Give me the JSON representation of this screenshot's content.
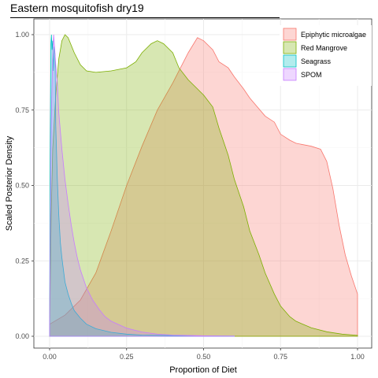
{
  "chart_data": {
    "type": "area",
    "title": "Eastern mosquitofish dry19",
    "xlabel": "Proportion of Diet",
    "ylabel": "Scaled Posterior Density",
    "xlim": [
      0,
      1
    ],
    "ylim": [
      0,
      1
    ],
    "x_ticks": [
      "0.00",
      "0.25",
      "0.50",
      "0.75",
      "1.00"
    ],
    "y_ticks": [
      "0.00",
      "0.25",
      "0.50",
      "0.75",
      "1.00"
    ],
    "grid": true,
    "legend_position": "top-right",
    "series": [
      {
        "name": "Epiphytic microalgae",
        "fill": "#F8766D",
        "stroke": "#F8766D",
        "points": [
          [
            0,
            0.04
          ],
          [
            0.05,
            0.07
          ],
          [
            0.1,
            0.12
          ],
          [
            0.15,
            0.21
          ],
          [
            0.2,
            0.35
          ],
          [
            0.25,
            0.5
          ],
          [
            0.3,
            0.63
          ],
          [
            0.35,
            0.75
          ],
          [
            0.4,
            0.84
          ],
          [
            0.45,
            0.94
          ],
          [
            0.48,
            0.99
          ],
          [
            0.5,
            0.98
          ],
          [
            0.53,
            0.95
          ],
          [
            0.55,
            0.91
          ],
          [
            0.58,
            0.89
          ],
          [
            0.6,
            0.86
          ],
          [
            0.63,
            0.82
          ],
          [
            0.65,
            0.79
          ],
          [
            0.7,
            0.73
          ],
          [
            0.73,
            0.71
          ],
          [
            0.75,
            0.67
          ],
          [
            0.78,
            0.65
          ],
          [
            0.8,
            0.64
          ],
          [
            0.85,
            0.63
          ],
          [
            0.88,
            0.62
          ],
          [
            0.9,
            0.58
          ],
          [
            0.92,
            0.49
          ],
          [
            0.94,
            0.37
          ],
          [
            0.96,
            0.27
          ],
          [
            0.98,
            0.2
          ],
          [
            1.0,
            0.14
          ]
        ]
      },
      {
        "name": "Red Mangrove",
        "fill": "#7CAE00",
        "stroke": "#7CAE00",
        "points": [
          [
            0,
            0.02
          ],
          [
            0.005,
            0.4
          ],
          [
            0.01,
            0.62
          ],
          [
            0.02,
            0.8
          ],
          [
            0.03,
            0.92
          ],
          [
            0.04,
            0.98
          ],
          [
            0.05,
            1.0
          ],
          [
            0.06,
            0.99
          ],
          [
            0.08,
            0.94
          ],
          [
            0.1,
            0.9
          ],
          [
            0.12,
            0.88
          ],
          [
            0.15,
            0.875
          ],
          [
            0.2,
            0.88
          ],
          [
            0.25,
            0.89
          ],
          [
            0.28,
            0.91
          ],
          [
            0.3,
            0.94
          ],
          [
            0.33,
            0.97
          ],
          [
            0.35,
            0.98
          ],
          [
            0.37,
            0.97
          ],
          [
            0.4,
            0.94
          ],
          [
            0.42,
            0.89
          ],
          [
            0.45,
            0.85
          ],
          [
            0.48,
            0.82
          ],
          [
            0.5,
            0.8
          ],
          [
            0.53,
            0.76
          ],
          [
            0.55,
            0.69
          ],
          [
            0.58,
            0.6
          ],
          [
            0.6,
            0.52
          ],
          [
            0.63,
            0.43
          ],
          [
            0.65,
            0.35
          ],
          [
            0.68,
            0.27
          ],
          [
            0.7,
            0.21
          ],
          [
            0.73,
            0.14
          ],
          [
            0.75,
            0.1
          ],
          [
            0.78,
            0.065
          ],
          [
            0.8,
            0.05
          ],
          [
            0.85,
            0.028
          ],
          [
            0.9,
            0.015
          ],
          [
            0.95,
            0.007
          ],
          [
            1.0,
            0.003
          ]
        ]
      },
      {
        "name": "Seagrass",
        "fill": "#00BFC4",
        "stroke": "#00BFC4",
        "points": [
          [
            0,
            0.02
          ],
          [
            0.002,
            0.6
          ],
          [
            0.004,
            0.97
          ],
          [
            0.006,
            1.0
          ],
          [
            0.008,
            0.95
          ],
          [
            0.01,
            0.98
          ],
          [
            0.012,
            0.88
          ],
          [
            0.015,
            0.96
          ],
          [
            0.018,
            0.93
          ],
          [
            0.02,
            0.7
          ],
          [
            0.025,
            0.52
          ],
          [
            0.03,
            0.4
          ],
          [
            0.035,
            0.31
          ],
          [
            0.04,
            0.26
          ],
          [
            0.05,
            0.18
          ],
          [
            0.06,
            0.14
          ],
          [
            0.07,
            0.11
          ],
          [
            0.08,
            0.085
          ],
          [
            0.1,
            0.06
          ],
          [
            0.12,
            0.04
          ],
          [
            0.15,
            0.025
          ],
          [
            0.2,
            0.013
          ],
          [
            0.25,
            0.007
          ],
          [
            0.3,
            0.004
          ],
          [
            0.4,
            0.002
          ],
          [
            0.5,
            0.001
          ],
          [
            0.6,
            0.0005
          ]
        ]
      },
      {
        "name": "SPOM",
        "fill": "#C77CFF",
        "stroke": "#C77CFF",
        "points": [
          [
            0,
            0.05
          ],
          [
            0.005,
            0.7
          ],
          [
            0.01,
            0.93
          ],
          [
            0.013,
            1.0
          ],
          [
            0.016,
            0.96
          ],
          [
            0.02,
            0.9
          ],
          [
            0.025,
            0.84
          ],
          [
            0.03,
            0.74
          ],
          [
            0.04,
            0.62
          ],
          [
            0.05,
            0.52
          ],
          [
            0.06,
            0.44
          ],
          [
            0.07,
            0.37
          ],
          [
            0.08,
            0.31
          ],
          [
            0.09,
            0.26
          ],
          [
            0.1,
            0.22
          ],
          [
            0.12,
            0.16
          ],
          [
            0.14,
            0.12
          ],
          [
            0.16,
            0.09
          ],
          [
            0.18,
            0.065
          ],
          [
            0.2,
            0.05
          ],
          [
            0.25,
            0.027
          ],
          [
            0.3,
            0.014
          ],
          [
            0.35,
            0.007
          ],
          [
            0.4,
            0.004
          ],
          [
            0.5,
            0.0015
          ],
          [
            0.6,
            0.0005
          ]
        ]
      }
    ]
  }
}
